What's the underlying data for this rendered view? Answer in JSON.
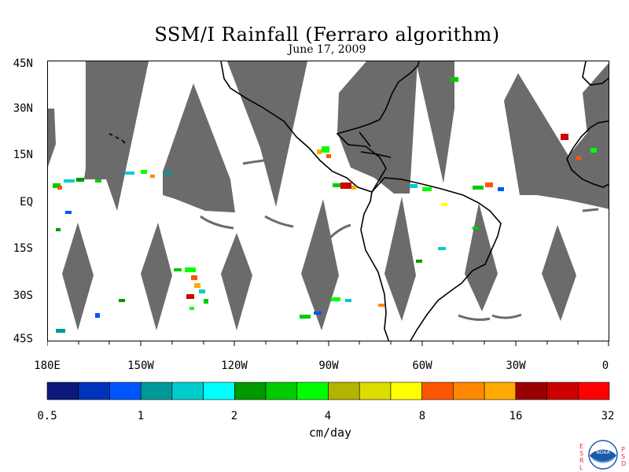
{
  "title": "SSM/I Rainfall (Ferraro algorithm)",
  "subtitle": "June 17, 2009",
  "axes": {
    "lat_labels": [
      "45N",
      "30N",
      "15N",
      "EQ",
      "15S",
      "30S",
      "45S"
    ],
    "lon_labels": [
      "180E",
      "150W",
      "120W",
      "90W",
      "60W",
      "30W",
      "0"
    ]
  },
  "colorbar": {
    "tick_labels": [
      "0.5",
      "1",
      "2",
      "4",
      "8",
      "16",
      "32"
    ],
    "units": "cm/day",
    "colors": [
      "#0b1a7a",
      "#0033bb",
      "#0055ff",
      "#009999",
      "#00cccc",
      "#00ffff",
      "#009900",
      "#00cc00",
      "#00ff00",
      "#b3b300",
      "#dddd00",
      "#ffff00",
      "#ff5500",
      "#ff8800",
      "#ffaa00",
      "#990000",
      "#cc0000",
      "#ff0000"
    ]
  },
  "colors": {
    "no_data": "#6b6b6b",
    "coast": "#000000"
  },
  "logo": {
    "left_text": "ESRL",
    "right_text": "PSD",
    "emblem": "NOAA"
  }
}
